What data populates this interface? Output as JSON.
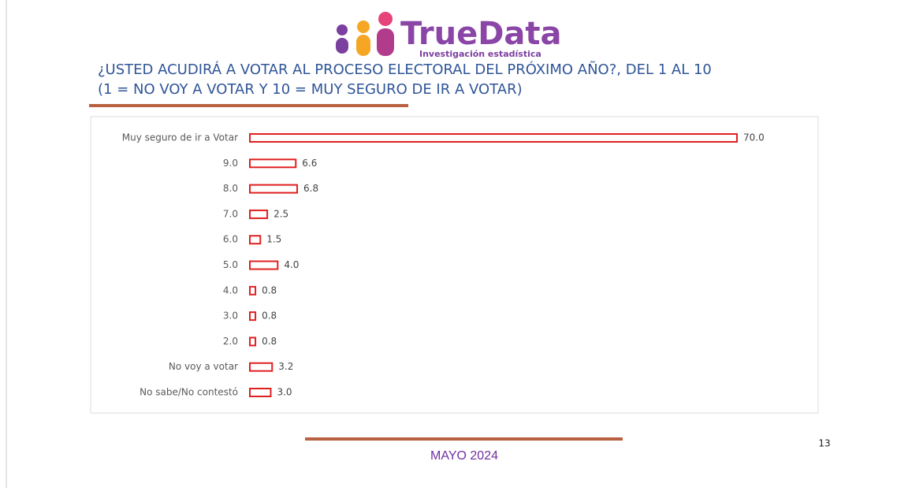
{
  "logo": {
    "name": "TrueData",
    "tagline": "Investigación estadística"
  },
  "chart_data": {
    "type": "bar",
    "orientation": "horizontal",
    "title": "¿USTED ACUDIRÁ A VOTAR AL PROCESO ELECTORAL DEL PRÓXIMO AÑO?, DEL 1 AL 10",
    "subtitle": "(1 = NO VOY A VOTAR Y 10 = MUY SEGURO DE IR A VOTAR)",
    "categories": [
      "Muy seguro de ir a Votar",
      "9.0",
      "8.0",
      "7.0",
      "6.0",
      "5.0",
      "4.0",
      "3.0",
      "2.0",
      "No voy a votar",
      "No sabe/No contestó"
    ],
    "values": [
      70,
      6.6,
      6.8,
      2.5,
      1.5,
      4,
      0.8,
      0.8,
      0.8,
      3.2,
      3
    ],
    "value_labels": [
      "70.0",
      "6.6",
      "6.8",
      "2.5",
      "1.5",
      "4.0",
      "0.8",
      "0.8",
      "0.8",
      "3.2",
      "3.0"
    ],
    "color": "#e02020"
  },
  "footer": "MAYO 2024",
  "page_number": "13"
}
